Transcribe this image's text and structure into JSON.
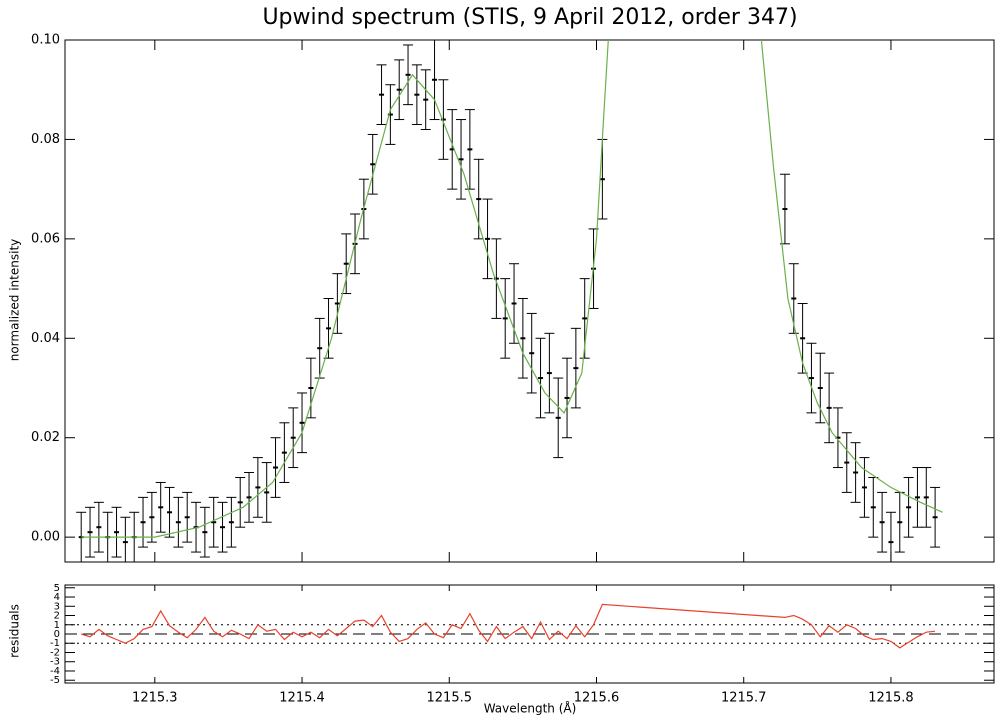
{
  "chart_data": [
    {
      "type": "errorbar",
      "title": "Upwind spectrum (STIS, 9 April 2012, order 347)",
      "y_label": "normalized intensity",
      "x": [
        1215.25,
        1215.256,
        1215.262,
        1215.268,
        1215.274,
        1215.28,
        1215.286,
        1215.292,
        1215.298,
        1215.304,
        1215.31,
        1215.316,
        1215.322,
        1215.328,
        1215.334,
        1215.34,
        1215.346,
        1215.352,
        1215.358,
        1215.364,
        1215.37,
        1215.376,
        1215.382,
        1215.388,
        1215.394,
        1215.4,
        1215.406,
        1215.412,
        1215.418,
        1215.424,
        1215.43,
        1215.436,
        1215.442,
        1215.448,
        1215.454,
        1215.46,
        1215.466,
        1215.472,
        1215.478,
        1215.484,
        1215.49,
        1215.496,
        1215.502,
        1215.508,
        1215.514,
        1215.52,
        1215.526,
        1215.532,
        1215.538,
        1215.544,
        1215.55,
        1215.556,
        1215.562,
        1215.568,
        1215.574,
        1215.58,
        1215.586,
        1215.592,
        1215.598,
        1215.604,
        1215.728,
        1215.734,
        1215.74,
        1215.746,
        1215.752,
        1215.758,
        1215.764,
        1215.77,
        1215.776,
        1215.782,
        1215.788,
        1215.794,
        1215.8,
        1215.806,
        1215.812,
        1215.818,
        1215.824,
        1215.83
      ],
      "values": [
        0.0,
        0.001,
        0.002,
        0.0,
        0.001,
        -0.001,
        0.0,
        0.003,
        0.004,
        0.006,
        0.005,
        0.003,
        0.004,
        0.002,
        0.001,
        0.003,
        0.002,
        0.003,
        0.007,
        0.008,
        0.01,
        0.009,
        0.014,
        0.017,
        0.02,
        0.023,
        0.03,
        0.038,
        0.042,
        0.047,
        0.055,
        0.059,
        0.066,
        0.075,
        0.089,
        0.085,
        0.09,
        0.093,
        0.089,
        0.088,
        0.092,
        0.084,
        0.078,
        0.076,
        0.078,
        0.068,
        0.06,
        0.052,
        0.044,
        0.047,
        0.04,
        0.037,
        0.032,
        0.033,
        0.024,
        0.028,
        0.034,
        0.044,
        0.054,
        0.072,
        0.066,
        0.048,
        0.04,
        0.032,
        0.03,
        0.026,
        0.02,
        0.015,
        0.013,
        0.01,
        0.006,
        0.003,
        -0.001,
        0.003,
        0.006,
        0.008,
        0.008,
        0.004
      ],
      "errors": [
        0.005,
        0.005,
        0.005,
        0.005,
        0.005,
        0.005,
        0.005,
        0.005,
        0.005,
        0.005,
        0.005,
        0.005,
        0.005,
        0.005,
        0.005,
        0.005,
        0.005,
        0.005,
        0.005,
        0.005,
        0.006,
        0.006,
        0.006,
        0.006,
        0.006,
        0.006,
        0.006,
        0.006,
        0.006,
        0.006,
        0.006,
        0.006,
        0.006,
        0.006,
        0.006,
        0.006,
        0.006,
        0.006,
        0.006,
        0.006,
        0.008,
        0.008,
        0.008,
        0.008,
        0.008,
        0.008,
        0.008,
        0.008,
        0.008,
        0.008,
        0.008,
        0.008,
        0.008,
        0.008,
        0.008,
        0.008,
        0.008,
        0.008,
        0.008,
        0.008,
        0.007,
        0.007,
        0.007,
        0.007,
        0.007,
        0.007,
        0.006,
        0.006,
        0.006,
        0.006,
        0.006,
        0.006,
        0.006,
        0.006,
        0.006,
        0.006,
        0.006,
        0.006
      ],
      "color": "#000000",
      "fit_x": [
        1215.25,
        1215.3,
        1215.33,
        1215.36,
        1215.38,
        1215.4,
        1215.42,
        1215.44,
        1215.46,
        1215.475,
        1215.49,
        1215.51,
        1215.53,
        1215.55,
        1215.565,
        1215.578,
        1215.59,
        1215.6,
        1215.605,
        1215.608,
        1215.66,
        1215.712,
        1215.72,
        1215.73,
        1215.74,
        1215.75,
        1215.76,
        1215.78,
        1215.8,
        1215.82,
        1215.835
      ],
      "fit_values": [
        0.0,
        0.0,
        0.002,
        0.006,
        0.011,
        0.021,
        0.04,
        0.064,
        0.086,
        0.093,
        0.088,
        0.073,
        0.053,
        0.037,
        0.029,
        0.025,
        0.033,
        0.06,
        0.085,
        0.1,
        null,
        0.1,
        0.075,
        0.048,
        0.035,
        0.027,
        0.021,
        0.014,
        0.01,
        0.007,
        0.005
      ],
      "fit_color": "#6ab04c",
      "xlim": [
        1215.239,
        1215.87
      ],
      "ylim": [
        -0.005,
        0.1
      ],
      "xticks": [
        1215.3,
        1215.4,
        1215.5,
        1215.6,
        1215.7,
        1215.8
      ],
      "yticks": [
        {
          "value": 0,
          "label": "0.00"
        },
        {
          "value": 0.02,
          "label": "0.02"
        },
        {
          "value": 0.04,
          "label": "0.04"
        },
        {
          "value": 0.06,
          "label": "0.06"
        },
        {
          "value": 0.08,
          "label": "0.08"
        },
        {
          "value": 0.1,
          "label": "0.10"
        }
      ]
    },
    {
      "type": "line",
      "y_label": "residuals",
      "x_label": "Wavelength (Å)",
      "x": [
        1215.25,
        1215.256,
        1215.262,
        1215.268,
        1215.274,
        1215.28,
        1215.286,
        1215.292,
        1215.298,
        1215.304,
        1215.31,
        1215.316,
        1215.322,
        1215.328,
        1215.334,
        1215.34,
        1215.346,
        1215.352,
        1215.358,
        1215.364,
        1215.37,
        1215.376,
        1215.382,
        1215.388,
        1215.394,
        1215.4,
        1215.406,
        1215.412,
        1215.418,
        1215.424,
        1215.43,
        1215.436,
        1215.442,
        1215.448,
        1215.454,
        1215.46,
        1215.466,
        1215.472,
        1215.478,
        1215.484,
        1215.49,
        1215.496,
        1215.502,
        1215.508,
        1215.514,
        1215.52,
        1215.526,
        1215.532,
        1215.538,
        1215.544,
        1215.55,
        1215.556,
        1215.562,
        1215.568,
        1215.574,
        1215.58,
        1215.586,
        1215.592,
        1215.598,
        1215.604,
        1215.728,
        1215.734,
        1215.74,
        1215.746,
        1215.752,
        1215.758,
        1215.764,
        1215.77,
        1215.776,
        1215.782,
        1215.788,
        1215.794,
        1215.8,
        1215.806,
        1215.812,
        1215.818,
        1215.824,
        1215.83
      ],
      "values": [
        0,
        -0.3,
        0.5,
        -0.2,
        -0.6,
        -1.0,
        -0.5,
        0.5,
        0.8,
        2.5,
        0.9,
        0.2,
        -0.4,
        0.5,
        1.8,
        0.3,
        -0.3,
        0.4,
        0.0,
        -0.5,
        1.0,
        0.3,
        0.5,
        -0.6,
        0.2,
        -0.3,
        0.2,
        -0.4,
        0.5,
        -0.2,
        0.6,
        1.4,
        1.5,
        0.8,
        2.0,
        0.2,
        -0.8,
        -0.5,
        0.5,
        1.2,
        0.0,
        -0.4,
        1.0,
        0.6,
        2.2,
        0.4,
        -0.8,
        0.8,
        -0.5,
        0.2,
        0.8,
        -0.5,
        1.3,
        -0.6,
        0.3,
        -0.5,
        0.9,
        -0.3,
        1.0,
        3.2,
        1.8,
        2.0,
        1.6,
        1.0,
        -0.3,
        0.9,
        0.2,
        1.0,
        0.6,
        -0.2,
        -0.6,
        -0.5,
        -0.8,
        -1.5,
        -0.9,
        -0.3,
        0.2,
        0.3
      ],
      "color": "#e8412c",
      "hlines": [
        {
          "value": 0,
          "style": "dashed"
        },
        {
          "value": 1,
          "style": "dotted"
        },
        {
          "value": -1,
          "style": "dotted"
        }
      ],
      "xlim": [
        1215.239,
        1215.87
      ],
      "ylim": [
        -5.3,
        5.3
      ],
      "xticks": [
        1215.3,
        1215.4,
        1215.5,
        1215.6,
        1215.7,
        1215.8
      ],
      "yticks": [
        -5,
        -4,
        -3,
        -2,
        -1,
        0,
        1,
        2,
        3,
        4,
        5
      ]
    }
  ]
}
